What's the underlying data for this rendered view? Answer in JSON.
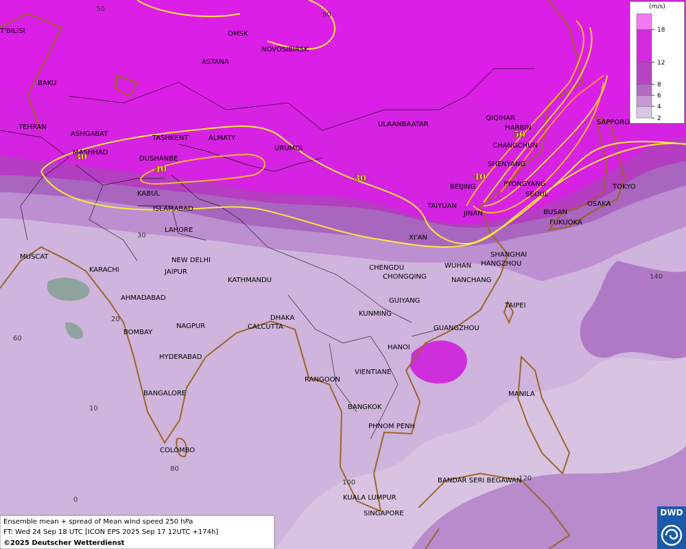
{
  "map": {
    "cities": [
      "OMSK",
      "NOVOSIBIRSK",
      "ASTANA",
      "T'BILISI",
      "BAKU",
      "TEHRAN",
      "ASHGABAT",
      "MASHHAD",
      "TASHKENT",
      "ALMATY",
      "DUSHANBE",
      "URUMQI",
      "ULAANBAATAR",
      "QIQIHAR",
      "HARBIN",
      "CHANGCHUN",
      "SHENYANG",
      "BEIJING",
      "PYONGYANG",
      "SEOUL",
      "SAPPORO",
      "TOKYO",
      "OSAKA",
      "BUSAN",
      "FUKUOKA",
      "TAIYUAN",
      "JINAN",
      "XI'AN",
      "KABUL",
      "ISLAMABAD",
      "LAHORE",
      "NEW DELHI",
      "JAIPUR",
      "KATHMANDU",
      "MUSCAT",
      "KARACHI",
      "AHMADABAD",
      "CHENGDU",
      "CHONGQING",
      "WUHAN",
      "SHANGHAI",
      "HANGZHOU",
      "NANCHANG",
      "TAIPEI",
      "GUIYANG",
      "KUNMING",
      "GUANGZHOU",
      "HANOI",
      "DHAKA",
      "CALCUTTA",
      "NAGPUR",
      "BOMBAY",
      "HYDERABAD",
      "BANGALORE",
      "COLOMBO",
      "RANGOON",
      "VIENTIANE",
      "BANGKOK",
      "PHNOM PENH",
      "MANILA",
      "BANDAR SERI BEGAWAN",
      "KUALA LUMPUR",
      "SINGAPORE"
    ],
    "contour_labels": [
      30,
      40,
      30,
      40,
      50
    ],
    "grid_labels": [
      50,
      60,
      30,
      20,
      10,
      0,
      60,
      80,
      100,
      120,
      140
    ]
  },
  "legend": {
    "unit": "(m/s)",
    "ticks": [
      2,
      4,
      6,
      8,
      12,
      18
    ]
  },
  "footer": {
    "line1": "Ensemble mean + spread of Mean wind speed 250 hPa",
    "line2": "FT: Wed 24 Sep 18 UTC [ICON EPS 2025 Sep 17 12UTC +174h]",
    "copyright": "©2025 Deutscher Wetterdienst"
  },
  "logo": "DWD"
}
